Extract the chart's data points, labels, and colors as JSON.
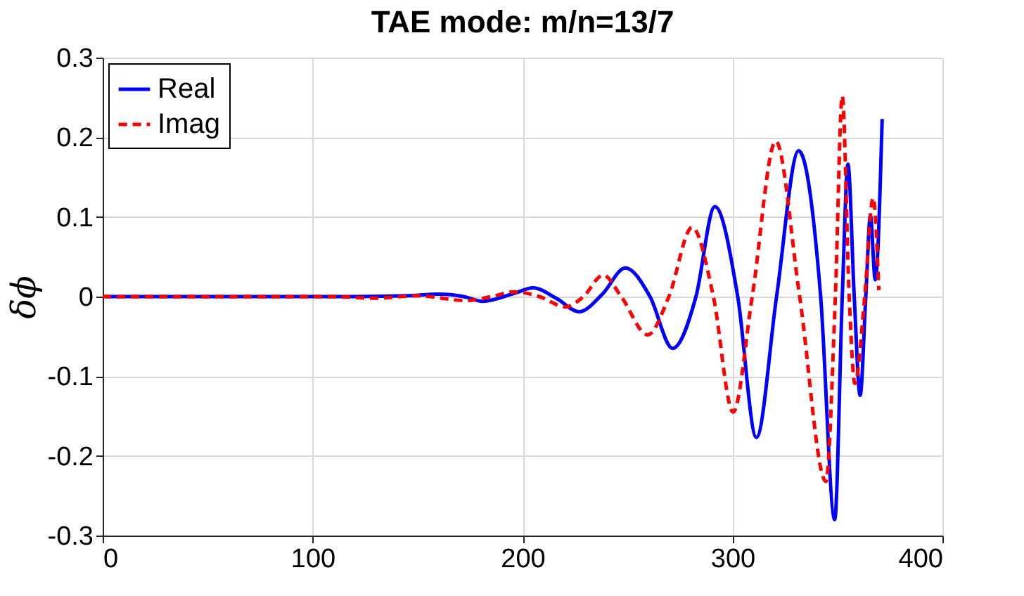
{
  "chart_data": {
    "type": "line",
    "title": "TAE mode: m/n=13/7",
    "ylabel": "δϕ",
    "xlim": [
      0,
      400
    ],
    "xticks": [
      0,
      100,
      200,
      300,
      400
    ],
    "ylim": [
      -0.3,
      0.3
    ],
    "yticks": [
      -0.3,
      -0.2,
      -0.1,
      0,
      0.1,
      0.2,
      0.3
    ],
    "grid": true,
    "legend": "top left",
    "marker": "none",
    "series": [
      {
        "name": "Real",
        "color": "#0000ff",
        "line_style": "solid",
        "x": [
          0,
          60,
          120,
          145,
          160,
          172,
          181,
          196,
          205,
          216,
          227,
          238,
          249,
          260.7,
          271.5,
          282.6,
          291.6,
          302.5,
          311.4,
          321,
          331.5,
          342,
          348.7,
          352.3,
          355,
          358,
          360.8,
          363.5,
          365.7,
          368,
          371.3
        ],
        "values": [
          0,
          0,
          0,
          0.001,
          0.003,
          0,
          -0.006,
          0.004,
          0.011,
          -0.002,
          -0.019,
          0.003,
          0.036,
          0,
          -0.065,
          0,
          0.113,
          0,
          -0.177,
          0,
          0.183,
          0,
          -0.28,
          0,
          0.166,
          0,
          -0.124,
          0,
          0.102,
          0.021,
          0.223
        ]
      },
      {
        "name": "Imag",
        "color": "#ff0000",
        "line_style": "dashed",
        "x": [
          0,
          60,
          110,
          129,
          150,
          173,
          185,
          196,
          208,
          220.5,
          229,
          238.4,
          247,
          259.6,
          269.7,
          280.8,
          290.9,
          300.3,
          309.4,
          320.6,
          332,
          344.5,
          349,
          352.3,
          355.6,
          358.3,
          363,
          367,
          369.7
        ],
        "values": [
          0,
          0,
          0,
          -0.002,
          0.001,
          -0.005,
          0,
          0.006,
          0,
          -0.013,
          0,
          0.027,
          0,
          -0.048,
          0,
          0.087,
          0,
          -0.145,
          0,
          0.195,
          0,
          -0.232,
          0,
          0.252,
          0,
          -0.109,
          0,
          0.124,
          0.008
        ]
      }
    ]
  }
}
